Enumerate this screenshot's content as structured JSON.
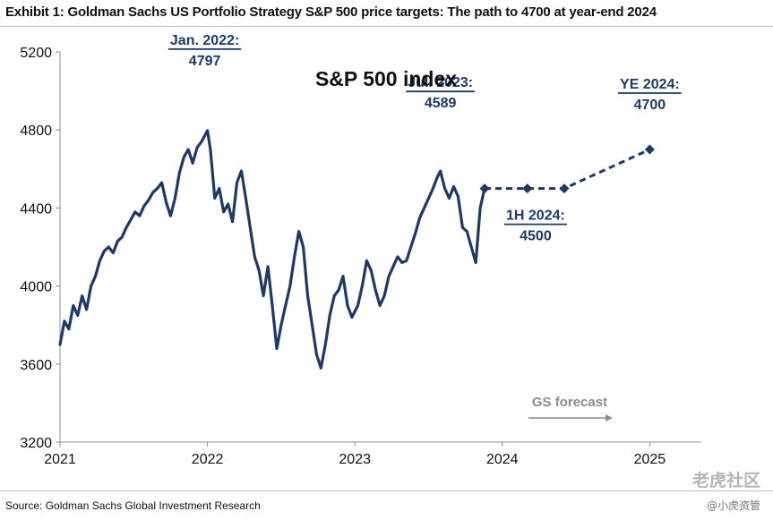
{
  "header": {
    "title": "Exhibit 1: Goldman Sachs US Portfolio Strategy S&P 500 price targets: The path to 4700 at year-end 2024"
  },
  "footer": {
    "source": "Source: Goldman Sachs Global Investment Research"
  },
  "watermark": {
    "text": "老虎社区",
    "sub": "@小虎资管"
  },
  "colors": {
    "line": "#1f3864",
    "text": "#1f3864",
    "axis": "#8c8c8c",
    "forecast_label": "#8c8c8c"
  },
  "chart_data": {
    "type": "line",
    "title": "S&P 500 index",
    "xlabel": "",
    "ylabel": "",
    "xlim": [
      2021.0,
      2025.35
    ],
    "ylim": [
      3200,
      5200
    ],
    "x_ticks": [
      "2021",
      "2022",
      "2023",
      "2024",
      "2025"
    ],
    "y_ticks": [
      "5200",
      "4800",
      "4400",
      "4000",
      "3600",
      "3200"
    ],
    "grid": false,
    "legend": "none",
    "series": [
      {
        "kind": "historical",
        "points": [
          [
            2021.0,
            3700
          ],
          [
            2021.03,
            3820
          ],
          [
            2021.06,
            3780
          ],
          [
            2021.09,
            3900
          ],
          [
            2021.12,
            3850
          ],
          [
            2021.15,
            3950
          ],
          [
            2021.18,
            3880
          ],
          [
            2021.21,
            4000
          ],
          [
            2021.24,
            4050
          ],
          [
            2021.27,
            4130
          ],
          [
            2021.3,
            4180
          ],
          [
            2021.33,
            4200
          ],
          [
            2021.36,
            4170
          ],
          [
            2021.39,
            4230
          ],
          [
            2021.42,
            4250
          ],
          [
            2021.45,
            4300
          ],
          [
            2021.48,
            4340
          ],
          [
            2021.51,
            4380
          ],
          [
            2021.54,
            4360
          ],
          [
            2021.57,
            4410
          ],
          [
            2021.6,
            4440
          ],
          [
            2021.63,
            4480
          ],
          [
            2021.66,
            4500
          ],
          [
            2021.69,
            4530
          ],
          [
            2021.72,
            4430
          ],
          [
            2021.75,
            4360
          ],
          [
            2021.78,
            4450
          ],
          [
            2021.81,
            4580
          ],
          [
            2021.84,
            4660
          ],
          [
            2021.87,
            4700
          ],
          [
            2021.9,
            4630
          ],
          [
            2021.93,
            4710
          ],
          [
            2021.96,
            4740
          ],
          [
            2022.0,
            4797
          ],
          [
            2022.02,
            4700
          ],
          [
            2022.05,
            4450
          ],
          [
            2022.08,
            4500
          ],
          [
            2022.11,
            4380
          ],
          [
            2022.14,
            4420
          ],
          [
            2022.17,
            4330
          ],
          [
            2022.2,
            4530
          ],
          [
            2022.23,
            4590
          ],
          [
            2022.26,
            4450
          ],
          [
            2022.29,
            4300
          ],
          [
            2022.32,
            4150
          ],
          [
            2022.35,
            4080
          ],
          [
            2022.38,
            3950
          ],
          [
            2022.41,
            4100
          ],
          [
            2022.44,
            3900
          ],
          [
            2022.47,
            3680
          ],
          [
            2022.5,
            3800
          ],
          [
            2022.53,
            3900
          ],
          [
            2022.56,
            4000
          ],
          [
            2022.59,
            4150
          ],
          [
            2022.62,
            4280
          ],
          [
            2022.65,
            4200
          ],
          [
            2022.68,
            3950
          ],
          [
            2022.71,
            3800
          ],
          [
            2022.74,
            3650
          ],
          [
            2022.77,
            3580
          ],
          [
            2022.8,
            3700
          ],
          [
            2022.83,
            3850
          ],
          [
            2022.86,
            3950
          ],
          [
            2022.89,
            3980
          ],
          [
            2022.92,
            4050
          ],
          [
            2022.95,
            3900
          ],
          [
            2022.98,
            3840
          ],
          [
            2023.02,
            3900
          ],
          [
            2023.05,
            4000
          ],
          [
            2023.08,
            4130
          ],
          [
            2023.11,
            4080
          ],
          [
            2023.14,
            3980
          ],
          [
            2023.17,
            3900
          ],
          [
            2023.2,
            3950
          ],
          [
            2023.23,
            4050
          ],
          [
            2023.26,
            4100
          ],
          [
            2023.29,
            4150
          ],
          [
            2023.32,
            4120
          ],
          [
            2023.35,
            4130
          ],
          [
            2023.38,
            4200
          ],
          [
            2023.41,
            4270
          ],
          [
            2023.44,
            4350
          ],
          [
            2023.47,
            4400
          ],
          [
            2023.5,
            4450
          ],
          [
            2023.53,
            4500
          ],
          [
            2023.56,
            4560
          ],
          [
            2023.58,
            4589
          ],
          [
            2023.61,
            4500
          ],
          [
            2023.64,
            4450
          ],
          [
            2023.67,
            4510
          ],
          [
            2023.7,
            4460
          ],
          [
            2023.73,
            4300
          ],
          [
            2023.76,
            4280
          ],
          [
            2023.79,
            4200
          ],
          [
            2023.82,
            4120
          ],
          [
            2023.85,
            4400
          ],
          [
            2023.88,
            4500
          ]
        ]
      },
      {
        "kind": "forecast",
        "points": [
          [
            2023.88,
            4500
          ],
          [
            2024.17,
            4500
          ],
          [
            2024.42,
            4500
          ],
          [
            2025.0,
            4700
          ]
        ]
      }
    ],
    "annotations": [
      {
        "id": "jan-2022",
        "label": "Jan. 2022:",
        "value_label": "4797",
        "x": 2022.0,
        "y": 4797
      },
      {
        "id": "jul-2023",
        "label": "Jul. 2023:",
        "value_label": "4589",
        "x": 2023.58,
        "y": 4589
      },
      {
        "id": "1h-2024",
        "label": "1H 2024:",
        "value_label": "4500",
        "x": 2024.42,
        "y": 4500
      },
      {
        "id": "ye-2024",
        "label": "YE 2024:",
        "value_label": "4700",
        "x": 2025.0,
        "y": 4700
      }
    ],
    "forecast_note": "GS forecast"
  }
}
